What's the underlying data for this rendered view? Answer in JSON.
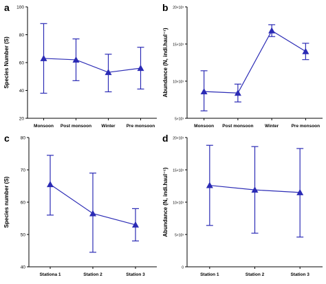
{
  "chart_data": [
    {
      "type": "line",
      "panel_label": "a",
      "ylabel": "Species Number (S)",
      "ylim": [
        20,
        100
      ],
      "yticks": [
        "20",
        "40",
        "60",
        "80",
        "100"
      ],
      "yticks_values": [
        20,
        40,
        60,
        80,
        100
      ],
      "categories": [
        "Monsoon",
        "Post monsoon",
        "Winter",
        "Pre monsoon"
      ],
      "values": [
        63,
        62,
        53,
        56
      ],
      "error_low": [
        38,
        47,
        39,
        41
      ],
      "error_high": [
        88,
        77,
        66,
        71
      ]
    },
    {
      "type": "line",
      "panel_label": "b",
      "ylabel": "Abundance (N, indi.haul⁻¹)",
      "ylim": [
        5000,
        20000
      ],
      "yticks": [
        "5×10³",
        "10×10³",
        "15×10³",
        "20×10³"
      ],
      "yticks_values": [
        5000,
        10000,
        15000,
        20000
      ],
      "categories": [
        "Monsoon",
        "Post monsoon",
        "Winter",
        "Pre monsoon"
      ],
      "values": [
        8600,
        8400,
        16800,
        14000
      ],
      "error_low": [
        6000,
        7200,
        16000,
        12900
      ],
      "error_high": [
        11400,
        9600,
        17600,
        15100
      ]
    },
    {
      "type": "line",
      "panel_label": "c",
      "ylabel": "Species number (S)",
      "ylim": [
        40,
        80
      ],
      "yticks": [
        "40",
        "50",
        "60",
        "70",
        "80"
      ],
      "yticks_values": [
        40,
        50,
        60,
        70,
        80
      ],
      "categories": [
        "Stationa 1",
        "Station 2",
        "Station 3"
      ],
      "values": [
        65.5,
        56.5,
        53
      ],
      "error_low": [
        56,
        44.5,
        48
      ],
      "error_high": [
        74.5,
        69,
        58
      ]
    },
    {
      "type": "line",
      "panel_label": "d",
      "ylabel": "Abundance (N, indi.haul⁻¹)",
      "ylim": [
        0,
        20000
      ],
      "yticks": [
        "0",
        "5×10³",
        "10×10³",
        "15×10³",
        "20×10³"
      ],
      "yticks_values": [
        0,
        5000,
        10000,
        15000,
        20000
      ],
      "categories": [
        "Station 1",
        "Station 2",
        "Station 3"
      ],
      "values": [
        12600,
        11900,
        11500
      ],
      "error_low": [
        6400,
        5200,
        4600
      ],
      "error_high": [
        18800,
        18600,
        18300
      ]
    }
  ],
  "colors": {
    "series": "#2b2bb5",
    "axis": "#000000"
  }
}
